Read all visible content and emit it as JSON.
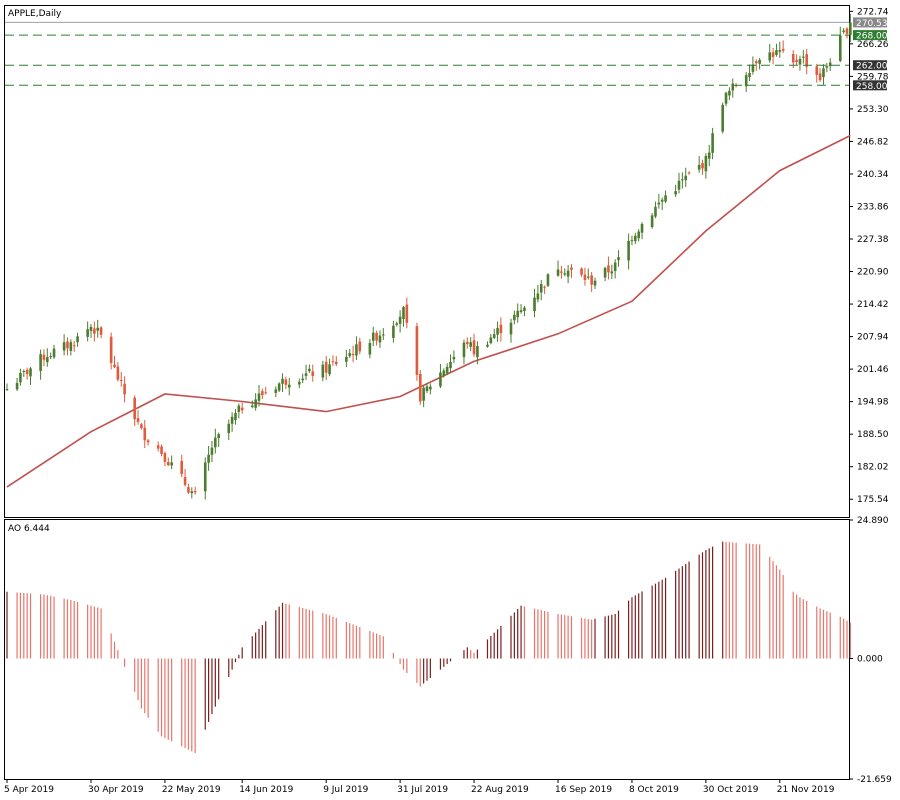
{
  "header": {
    "symbol_label": "APPLE,Daily"
  },
  "ao_panel": {
    "label": "AO 6.444"
  },
  "colors": {
    "bull": "#4b7c2f",
    "bear": "#e05a3c",
    "ma": "#c0504d",
    "ao_up": "#7a1f1f",
    "ao_down": "#e8756a",
    "hline": "#2e7d32",
    "tag_green": "#2e7d32",
    "tag_dark": "#333333",
    "tag_grey": "#888888"
  },
  "price_axis": {
    "ticks": [
      "272.74",
      "266.26",
      "259.78",
      "253.30",
      "246.82",
      "240.34",
      "233.86",
      "227.38",
      "220.90",
      "214.42",
      "207.94",
      "201.46",
      "194.98",
      "188.50",
      "182.02",
      "175.54"
    ],
    "tags": [
      {
        "label": "270.53",
        "value": 270.53,
        "style": "grey"
      },
      {
        "label": "268.00",
        "value": 268.0,
        "style": "green"
      },
      {
        "label": "262.00",
        "value": 262.0,
        "style": "dark"
      },
      {
        "label": "258.00",
        "value": 258.0,
        "style": "dark"
      }
    ]
  },
  "ao_axis": {
    "ticks": [
      "24.890",
      "0.000",
      "-21.659"
    ]
  },
  "time_axis": {
    "labels": [
      "5 Apr 2019",
      "30 Apr 2019",
      "22 May 2019",
      "14 Jun 2019",
      "9 Jul 2019",
      "31 Jul 2019",
      "22 Aug 2019",
      "16 Sep 2019",
      "8 Oct 2019",
      "30 Oct 2019",
      "21 Nov 2019"
    ]
  },
  "chart_data": [
    {
      "type": "candlestick",
      "title": "APPLE,Daily",
      "ylim": [
        172.0,
        273.8
      ],
      "horizontal_levels": [
        268.0,
        262.0,
        258.0
      ],
      "last_price": 270.53,
      "anchors": [
        {
          "date": "5 Apr 2019",
          "close": 197.5
        },
        {
          "date": "16 Apr 2019",
          "close": 204.0
        },
        {
          "date": "24 Apr 2019",
          "close": 206.5
        },
        {
          "date": "30 Apr 2019",
          "close": 210.0
        },
        {
          "date": "3 May 2019",
          "close": 208.0
        },
        {
          "date": "9 May 2019",
          "close": 198.0
        },
        {
          "date": "15 May 2019",
          "close": 189.0
        },
        {
          "date": "21 May 2019",
          "close": 185.0
        },
        {
          "date": "31 May 2019",
          "close": 176.0
        },
        {
          "date": "5 Jun 2019",
          "close": 186.0
        },
        {
          "date": "14 Jun 2019",
          "close": 194.0
        },
        {
          "date": "26 Jun 2019",
          "close": 199.0
        },
        {
          "date": "9 Jul 2019",
          "close": 201.5
        },
        {
          "date": "26 Jul 2019",
          "close": 209.0
        },
        {
          "date": "1 Aug 2019",
          "close": 213.0
        },
        {
          "date": "6 Aug 2019",
          "close": 196.0
        },
        {
          "date": "20 Aug 2019",
          "close": 207.0
        },
        {
          "date": "22 Aug 2019",
          "close": 205.0
        },
        {
          "date": "5 Sep 2019",
          "close": 213.0
        },
        {
          "date": "16 Sep 2019",
          "close": 222.0
        },
        {
          "date": "26 Sep 2019",
          "close": 219.0
        },
        {
          "date": "3 Oct 2019",
          "close": 222.0
        },
        {
          "date": "8 Oct 2019",
          "close": 228.0
        },
        {
          "date": "18 Oct 2019",
          "close": 236.0
        },
        {
          "date": "30 Oct 2019",
          "close": 243.0
        },
        {
          "date": "4 Nov 2019",
          "close": 255.0
        },
        {
          "date": "15 Nov 2019",
          "close": 264.0
        },
        {
          "date": "21 Nov 2019",
          "close": 264.5
        },
        {
          "date": "25 Nov 2019",
          "close": 262.0
        },
        {
          "date": "27 Nov 2019",
          "close": 264.0
        },
        {
          "date": "3 Dec 2019",
          "close": 259.5
        },
        {
          "date": "9 Dec 2019",
          "close": 267.0
        },
        {
          "date": "12 Dec 2019",
          "close": 270.53
        }
      ],
      "moving_average": [
        {
          "date": "5 Apr 2019",
          "value": 178.0
        },
        {
          "date": "30 Apr 2019",
          "value": 189.0
        },
        {
          "date": "22 May 2019",
          "value": 196.5
        },
        {
          "date": "14 Jun 2019",
          "value": 195.0
        },
        {
          "date": "9 Jul 2019",
          "value": 193.0
        },
        {
          "date": "31 Jul 2019",
          "value": 196.0
        },
        {
          "date": "22 Aug 2019",
          "value": 203.0
        },
        {
          "date": "16 Sep 2019",
          "value": 208.5
        },
        {
          "date": "8 Oct 2019",
          "value": 215.0
        },
        {
          "date": "30 Oct 2019",
          "value": 229.0
        },
        {
          "date": "21 Nov 2019",
          "value": 241.0
        },
        {
          "date": "12 Dec 2019",
          "value": 248.0
        }
      ]
    },
    {
      "type": "bar",
      "title": "AO 6.444",
      "ylim": [
        -21.659,
        24.89
      ],
      "last_value": 6.444,
      "anchors": [
        {
          "date": "5 Apr 2019",
          "value": 12.0
        },
        {
          "date": "16 Apr 2019",
          "value": 11.5
        },
        {
          "date": "24 Apr 2019",
          "value": 10.5
        },
        {
          "date": "30 Apr 2019",
          "value": 9.5
        },
        {
          "date": "3 May 2019",
          "value": 9.0
        },
        {
          "date": "9 May 2019",
          "value": 0.0
        },
        {
          "date": "15 May 2019",
          "value": -9.0
        },
        {
          "date": "21 May 2019",
          "value": -14.0
        },
        {
          "date": "31 May 2019",
          "value": -17.0
        },
        {
          "date": "5 Jun 2019",
          "value": -10.0
        },
        {
          "date": "14 Jun 2019",
          "value": 2.0
        },
        {
          "date": "26 Jun 2019",
          "value": 10.0
        },
        {
          "date": "9 Jul 2019",
          "value": 8.0
        },
        {
          "date": "26 Jul 2019",
          "value": 4.0
        },
        {
          "date": "1 Aug 2019",
          "value": -2.0
        },
        {
          "date": "6 Aug 2019",
          "value": -5.0
        },
        {
          "date": "20 Aug 2019",
          "value": 2.0
        },
        {
          "date": "22 Aug 2019",
          "value": 1.0
        },
        {
          "date": "5 Sep 2019",
          "value": 9.5
        },
        {
          "date": "16 Sep 2019",
          "value": 8.0
        },
        {
          "date": "26 Sep 2019",
          "value": 7.0
        },
        {
          "date": "3 Oct 2019",
          "value": 8.0
        },
        {
          "date": "8 Oct 2019",
          "value": 11.0
        },
        {
          "date": "18 Oct 2019",
          "value": 14.5
        },
        {
          "date": "30 Oct 2019",
          "value": 19.5
        },
        {
          "date": "4 Nov 2019",
          "value": 21.0
        },
        {
          "date": "15 Nov 2019",
          "value": 20.5
        },
        {
          "date": "21 Nov 2019",
          "value": 16.0
        },
        {
          "date": "25 Nov 2019",
          "value": 12.0
        },
        {
          "date": "27 Nov 2019",
          "value": 11.0
        },
        {
          "date": "3 Dec 2019",
          "value": 9.0
        },
        {
          "date": "9 Dec 2019",
          "value": 7.5
        },
        {
          "date": "12 Dec 2019",
          "value": 6.444
        }
      ]
    }
  ]
}
